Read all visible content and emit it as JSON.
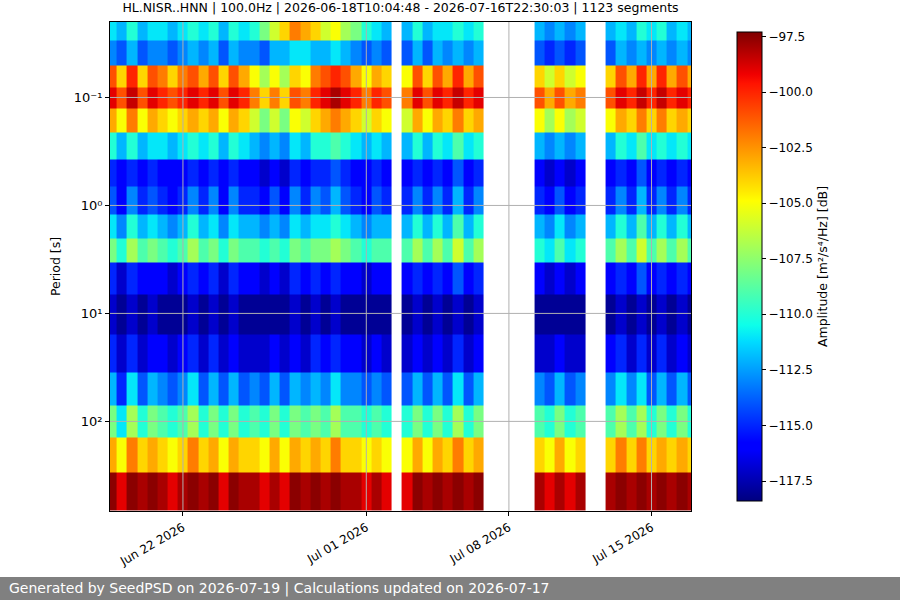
{
  "chart_data": {
    "type": "heatmap",
    "title": "HL.NISR..HNN | 100.0Hz | 2026-06-18T10:04:48 - 2026-07-16T22:30:03 | 1123 segments",
    "y_label": "Period [s]",
    "colorbar_title": "Amplitude [m²/s⁴/Hz] [dB]",
    "log": "y",
    "grid": true,
    "xlim": [
      "2026-06-18 10:04:48",
      "2026-07-16 22:30:03"
    ],
    "xticks": [
      {
        "value": "2026-06-22",
        "label": "Jun 22 2026"
      },
      {
        "value": "2026-07-01",
        "label": "Jul 01 2026"
      },
      {
        "value": "2026-07-08",
        "label": "Jul 08 2026"
      },
      {
        "value": "2026-07-15",
        "label": "Jul 15 2026"
      }
    ],
    "ylim": [
      676,
      0.02
    ],
    "yticks": [
      {
        "value": 0.1,
        "label": "10⁻¹"
      },
      {
        "value": 1,
        "label": "10⁰"
      },
      {
        "value": 10,
        "label": "10¹"
      },
      {
        "value": 100,
        "label": "10²"
      }
    ],
    "zlim": [
      -118.4,
      -97.3
    ],
    "zticks": [
      {
        "value": -117.5,
        "label": "−117.5"
      },
      {
        "value": -115,
        "label": "−115.0"
      },
      {
        "value": -112.5,
        "label": "−112.5"
      },
      {
        "value": -110,
        "label": "−110.0"
      },
      {
        "value": -107.5,
        "label": "−107.5"
      },
      {
        "value": -105,
        "label": "−105.0"
      },
      {
        "value": -102.5,
        "label": "−102.5"
      },
      {
        "value": -100,
        "label": "−100.0"
      },
      {
        "value": -97.5,
        "label": "−97.5"
      }
    ],
    "x": [
      "2026-06-18 12:00",
      "2026-06-19 00:00",
      "2026-06-19 12:00",
      "2026-06-20 00:00",
      "2026-06-20 12:00",
      "2026-06-21 00:00",
      "2026-06-21 12:00",
      "2026-06-22 00:00",
      "2026-06-22 12:00",
      "2026-06-23 00:00",
      "2026-06-23 12:00",
      "2026-06-24 00:00",
      "2026-06-24 12:00",
      "2026-06-25 00:00",
      "2026-06-25 12:00",
      "2026-06-26 00:00",
      "2026-06-26 12:00",
      "2026-06-27 00:00",
      "2026-06-27 12:00",
      "2026-06-28 00:00",
      "2026-06-28 12:00",
      "2026-06-29 00:00",
      "2026-06-29 12:00",
      "2026-06-30 00:00",
      "2026-06-30 12:00",
      "2026-07-01 00:00",
      "2026-07-01 12:00",
      "2026-07-02 00:00",
      "2026-07-02 12:00",
      "2026-07-03 00:00",
      "2026-07-03 12:00",
      "2026-07-04 00:00",
      "2026-07-04 12:00",
      "2026-07-05 00:00",
      "2026-07-05 12:00",
      "2026-07-06 00:00",
      "2026-07-06 12:00",
      "2026-07-07 00:00",
      "2026-07-07 12:00",
      "2026-07-08 00:00",
      "2026-07-08 12:00",
      "2026-07-09 00:00",
      "2026-07-09 12:00",
      "2026-07-10 00:00",
      "2026-07-10 12:00",
      "2026-07-11 00:00",
      "2026-07-11 12:00",
      "2026-07-12 00:00",
      "2026-07-12 12:00",
      "2026-07-13 00:00",
      "2026-07-13 12:00",
      "2026-07-14 00:00",
      "2026-07-14 12:00",
      "2026-07-15 00:00",
      "2026-07-15 12:00",
      "2026-07-16 00:00",
      "2026-07-16 12:00",
      "2026-07-17 00:00"
    ],
    "y": [
      0.022,
      0.04,
      0.065,
      0.1,
      0.16,
      0.28,
      0.5,
      0.9,
      1.6,
      2.5,
      4.5,
      10,
      25,
      50,
      100,
      200,
      450
    ],
    "z": [
      [
        -111,
        -112,
        -110,
        -112,
        -111,
        -111,
        -112,
        -111,
        -110,
        -111,
        -110,
        -112,
        -110,
        -111,
        -110,
        -108,
        -106,
        -104,
        -102,
        -103,
        -104,
        -106,
        -105,
        -107,
        -108,
        -110,
        -111,
        -112,
        null,
        -112,
        -110,
        -112,
        -111,
        -111,
        -110,
        -111,
        -110,
        null,
        null,
        null,
        null,
        null,
        -112,
        -113,
        -112,
        -113,
        -112,
        null,
        null,
        -112,
        -111,
        -112,
        -110,
        -111,
        -110,
        -112,
        -111,
        -112
      ],
      [
        -113,
        -114,
        -112,
        -114,
        -113,
        -113,
        -114,
        -113,
        -112,
        -113,
        -112,
        -114,
        -112,
        -113,
        -113,
        -114,
        -112,
        -112,
        -111,
        -111,
        -112,
        -112,
        -111,
        -112,
        -113,
        -114,
        -113,
        -114,
        null,
        -114,
        -112,
        -114,
        -112,
        -113,
        -112,
        -113,
        -112,
        null,
        null,
        null,
        null,
        null,
        -114,
        -115,
        -114,
        -115,
        -114,
        null,
        null,
        -114,
        -112,
        -113,
        -112,
        -113,
        -112,
        -113,
        -112,
        -113
      ],
      [
        -101,
        -104,
        -100,
        -104,
        -101,
        -102,
        -104,
        -102,
        -101,
        -103,
        -101,
        -104,
        -101,
        -103,
        -105,
        -107,
        -105,
        -107,
        -104,
        -105,
        -102,
        -101,
        -100,
        -101,
        -103,
        -105,
        -103,
        -104,
        null,
        -105,
        -101,
        -104,
        -101,
        -103,
        -100,
        -103,
        -101,
        null,
        null,
        null,
        null,
        null,
        -104,
        -106,
        -104,
        -106,
        -105,
        null,
        null,
        -104,
        -101,
        -103,
        -100,
        -103,
        -100,
        -103,
        -101,
        -103
      ],
      [
        -99,
        -101,
        -98.5,
        -101,
        -99,
        -100,
        -101,
        -100,
        -99,
        -100,
        -99,
        -101,
        -99,
        -100,
        -102,
        -104,
        -102,
        -104,
        -101,
        -102,
        -100,
        -99,
        -98,
        -99,
        -100,
        -102,
        -100,
        -101,
        null,
        -102,
        -99,
        -101,
        -99,
        -100,
        -98.5,
        -100,
        -99,
        null,
        null,
        null,
        null,
        null,
        -101,
        -103,
        -101,
        -103,
        -102,
        null,
        null,
        -101,
        -99,
        -100,
        -98.5,
        -100,
        -98.5,
        -100,
        -99,
        -100
      ],
      [
        -103,
        -105,
        -102,
        -105,
        -103,
        -104,
        -105,
        -104,
        -103,
        -104,
        -103,
        -105,
        -103,
        -104,
        -106,
        -108,
        -106,
        -108,
        -105,
        -106,
        -104,
        -103,
        -102,
        -103,
        -104,
        -106,
        -104,
        -105,
        null,
        -106,
        -103,
        -105,
        -103,
        -104,
        -102,
        -104,
        -103,
        null,
        null,
        null,
        null,
        null,
        -105,
        -107,
        -105,
        -107,
        -106,
        null,
        null,
        -105,
        -103,
        -104,
        -102,
        -104,
        -102,
        -104,
        -103,
        -104
      ],
      [
        -110,
        -112,
        -110,
        -112,
        -111,
        -111,
        -112,
        -111,
        -110,
        -111,
        -110,
        -112,
        -110,
        -111,
        -112,
        -113,
        -112,
        -113,
        -111,
        -112,
        -110,
        -110,
        -109,
        -110,
        -111,
        -112,
        -111,
        -112,
        null,
        -112,
        -110,
        -112,
        -110,
        -111,
        -109,
        -111,
        -110,
        null,
        null,
        null,
        null,
        null,
        -112,
        -113,
        -112,
        -113,
        -112,
        null,
        null,
        -112,
        -110,
        -111,
        -109,
        -111,
        -110,
        -111,
        -110,
        -111
      ],
      [
        -115,
        -116,
        -115,
        -116,
        -115,
        -116,
        -116,
        -116,
        -115,
        -116,
        -115,
        -116,
        -115,
        -116,
        -116,
        -117,
        -116,
        -117,
        -115,
        -116,
        -115,
        -115,
        -114,
        -115,
        -116,
        -116,
        -115,
        -116,
        null,
        -116,
        -115,
        -116,
        -115,
        -116,
        -114,
        -116,
        -115,
        null,
        null,
        null,
        null,
        null,
        -116,
        -117,
        -116,
        -117,
        -116,
        null,
        null,
        -116,
        -115,
        -116,
        -114,
        -116,
        -115,
        -116,
        -115,
        -116
      ],
      [
        -114,
        -116,
        -113,
        -115,
        -114,
        -115,
        -116,
        -115,
        -113,
        -115,
        -113,
        -116,
        -113,
        -115,
        -115,
        -116,
        -114,
        -116,
        -113,
        -115,
        -113,
        -114,
        -112,
        -114,
        -115,
        -116,
        -114,
        -115,
        null,
        -115,
        -113,
        -115,
        -113,
        -115,
        -112,
        -115,
        -113,
        null,
        null,
        null,
        null,
        null,
        -115,
        -116,
        -114,
        -116,
        -115,
        null,
        null,
        -115,
        -113,
        -115,
        -112,
        -115,
        -113,
        -115,
        -113,
        -115
      ],
      [
        -111,
        -113,
        -110,
        -112,
        -111,
        -112,
        -113,
        -112,
        -110,
        -112,
        -111,
        -113,
        -111,
        -112,
        -112,
        -113,
        -112,
        -113,
        -111,
        -112,
        -111,
        -111,
        -110,
        -111,
        -112,
        -113,
        -112,
        -112,
        null,
        -112,
        -110,
        -112,
        -110,
        -112,
        -109,
        -112,
        -110,
        null,
        null,
        null,
        null,
        null,
        -112,
        -113,
        -111,
        -113,
        -112,
        null,
        null,
        -112,
        -110,
        -112,
        -109,
        -112,
        -110,
        -112,
        -110,
        -112
      ],
      [
        -108,
        -110,
        -107,
        -109,
        -108,
        -109,
        -110,
        -109,
        -107,
        -109,
        -108,
        -110,
        -108,
        -109,
        -109,
        -110,
        -109,
        -110,
        -108,
        -109,
        -108,
        -108,
        -107,
        -108,
        -109,
        -110,
        -109,
        -109,
        null,
        -109,
        -107,
        -109,
        -107,
        -109,
        -106,
        -109,
        -107,
        null,
        null,
        null,
        null,
        null,
        -110,
        -111,
        -109,
        -111,
        -110,
        null,
        null,
        -109,
        -107,
        -109,
        -106,
        -109,
        -107,
        -109,
        -107,
        -109
      ],
      [
        -115,
        -117,
        -115,
        -116,
        -116,
        -116,
        -117,
        -116,
        -115,
        -116,
        -115,
        -117,
        -115,
        -116,
        -116,
        -117,
        -116,
        -117,
        -115,
        -116,
        -115,
        -116,
        -115,
        -116,
        -116,
        -117,
        -116,
        -116,
        null,
        -116,
        -115,
        -116,
        -115,
        -116,
        -114,
        -116,
        -115,
        null,
        null,
        null,
        null,
        null,
        -116,
        -117,
        -116,
        -117,
        -116,
        null,
        null,
        -116,
        -115,
        -116,
        -114,
        -116,
        -115,
        -116,
        -115,
        -116
      ],
      [
        -117,
        -118,
        -117,
        -118,
        -117,
        -118,
        -118,
        -118,
        -117,
        -118,
        -117,
        -118,
        -117,
        -118,
        -118,
        -118,
        -118,
        -118,
        -117,
        -118,
        -117,
        -118,
        -117,
        -118,
        -118,
        -118,
        -118,
        -118,
        null,
        -118,
        -117,
        -118,
        -117,
        -118,
        -117,
        -118,
        -117,
        null,
        null,
        null,
        null,
        null,
        -118,
        -118,
        -118,
        -118,
        -118,
        null,
        null,
        -118,
        -117,
        -118,
        -117,
        -118,
        -117,
        -118,
        -117,
        -118
      ],
      [
        -115,
        -117,
        -115,
        -117,
        -116,
        -116,
        -117,
        -116,
        -115,
        -117,
        -115,
        -117,
        -116,
        -117,
        -117,
        -117,
        -116,
        -117,
        -116,
        -117,
        -115,
        -116,
        -115,
        -116,
        -116,
        -117,
        -116,
        -117,
        null,
        -117,
        -116,
        -117,
        -116,
        -117,
        -115,
        -117,
        -116,
        null,
        null,
        null,
        null,
        null,
        -117,
        -117,
        -116,
        -117,
        -117,
        null,
        null,
        -116,
        -115,
        -117,
        -115,
        -117,
        -115,
        -117,
        -116,
        -117
      ],
      [
        -112,
        -115,
        -111,
        -114,
        -112,
        -113,
        -114,
        -113,
        -111,
        -114,
        -112,
        -114,
        -112,
        -114,
        -113,
        -114,
        -112,
        -114,
        -112,
        -113,
        -112,
        -113,
        -111,
        -113,
        -113,
        -114,
        -113,
        -114,
        null,
        -114,
        -112,
        -114,
        -112,
        -114,
        -111,
        -114,
        -112,
        null,
        null,
        null,
        null,
        null,
        -113,
        -114,
        -112,
        -114,
        -113,
        null,
        null,
        -113,
        -111,
        -113,
        -111,
        -114,
        -112,
        -114,
        -112,
        -114
      ],
      [
        -108,
        -111,
        -107,
        -110,
        -108,
        -109,
        -110,
        -109,
        -107,
        -110,
        -108,
        -110,
        -108,
        -110,
        -109,
        -110,
        -108,
        -110,
        -108,
        -109,
        -108,
        -109,
        -107,
        -109,
        -109,
        -110,
        -109,
        -110,
        null,
        -110,
        -108,
        -110,
        -108,
        -110,
        -107,
        -110,
        -108,
        null,
        null,
        null,
        null,
        null,
        -109,
        -110,
        -108,
        -110,
        -109,
        null,
        null,
        -109,
        -107,
        -109,
        -107,
        -110,
        -108,
        -110,
        -108,
        -110
      ],
      [
        -103,
        -105,
        -102,
        -104,
        -103,
        -104,
        -105,
        -104,
        -102,
        -104,
        -103,
        -105,
        -103,
        -104,
        -104,
        -105,
        -103,
        -105,
        -103,
        -104,
        -103,
        -104,
        -102,
        -104,
        -104,
        -105,
        -104,
        -105,
        null,
        -105,
        -103,
        -105,
        -103,
        -104,
        -102,
        -104,
        -103,
        null,
        null,
        null,
        null,
        null,
        -104,
        -105,
        -103,
        -105,
        -104,
        null,
        null,
        -104,
        -102,
        -104,
        -102,
        -104,
        -103,
        -104,
        -103,
        -104
      ],
      [
        -97.5,
        -99,
        -97.5,
        -98,
        -97.5,
        -98,
        -99,
        -98,
        -97.5,
        -98,
        -97.5,
        -99,
        -97.5,
        -98,
        -98,
        -99,
        -98,
        -99,
        -97.5,
        -98,
        -97.5,
        -98,
        -97.5,
        -98,
        -98,
        -99,
        -98,
        -99,
        null,
        -99,
        -97.5,
        -98,
        -97.5,
        -98,
        -97.5,
        -98,
        -97.5,
        null,
        null,
        null,
        null,
        null,
        -98,
        -99,
        -98,
        -99,
        -98,
        null,
        null,
        -98,
        -97.5,
        -98,
        -97.5,
        -98,
        -97.5,
        -98,
        -97.5,
        -98
      ]
    ]
  },
  "footer": "Generated by SeedPSD on 2026-07-19 | Calculations updated on 2026-07-17"
}
